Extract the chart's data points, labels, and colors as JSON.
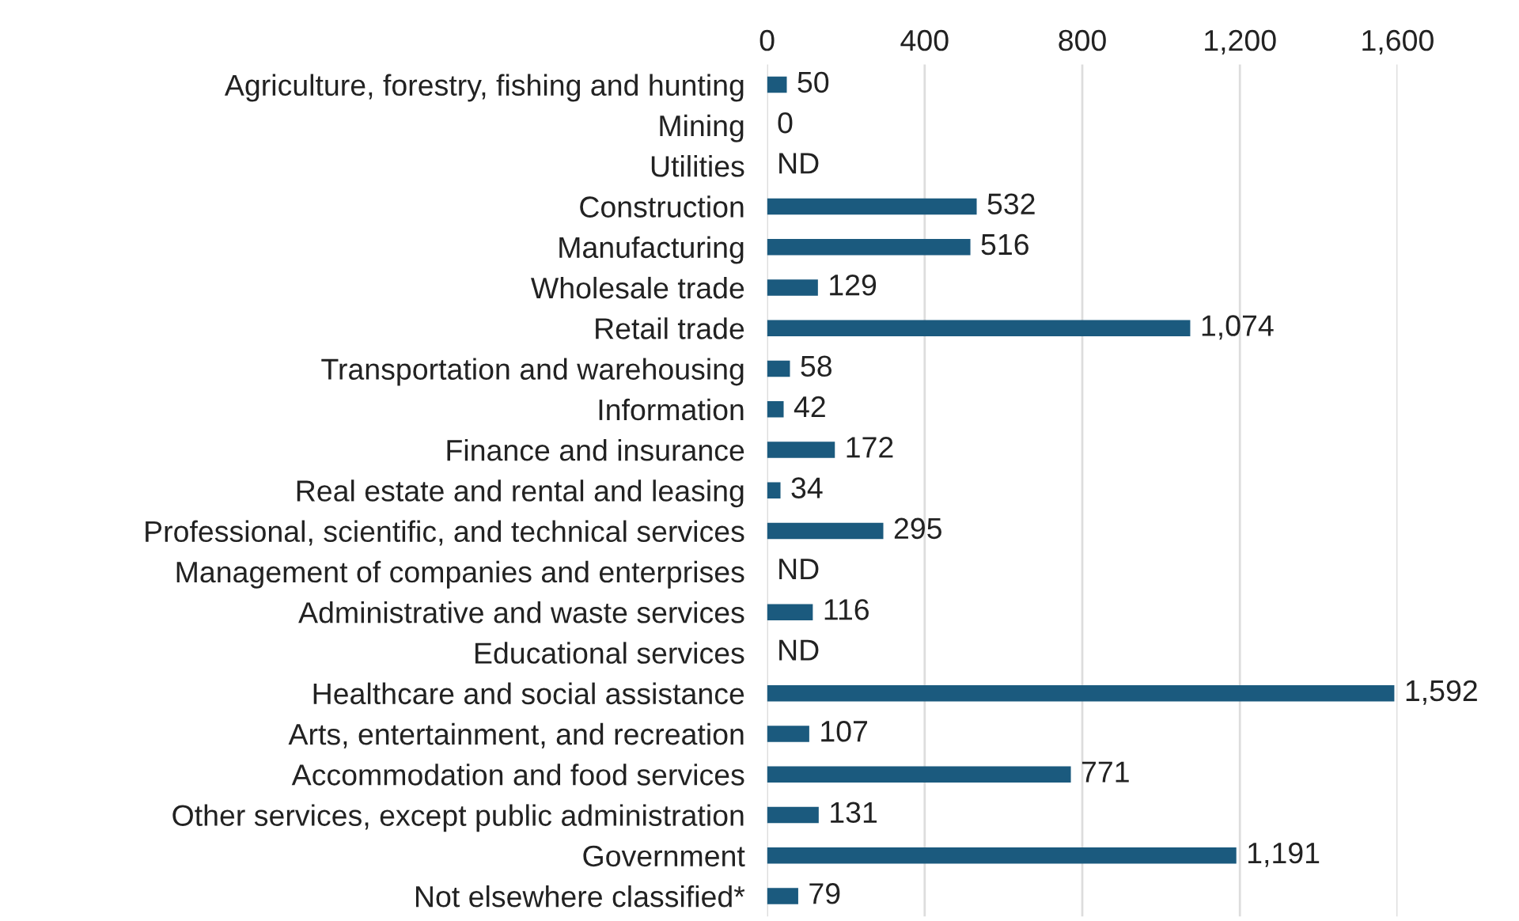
{
  "chart_data": {
    "type": "bar",
    "orientation": "horizontal",
    "categories": [
      "Agriculture, forestry, fishing and hunting",
      "Mining",
      "Utilities",
      "Construction",
      "Manufacturing",
      "Wholesale trade",
      "Retail trade",
      "Transportation and warehousing",
      "Information",
      "Finance and insurance",
      "Real estate and rental and leasing",
      "Professional, scientific, and technical services",
      "Management of companies and enterprises",
      "Administrative and waste services",
      "Educational services",
      "Healthcare and social assistance",
      "Arts, entertainment, and recreation",
      "Accommodation and food services",
      "Other services, except public administration",
      "Government",
      "Not elsewhere classified*"
    ],
    "values": [
      50,
      0,
      null,
      532,
      516,
      129,
      1074,
      58,
      42,
      172,
      34,
      295,
      null,
      116,
      null,
      1592,
      107,
      771,
      131,
      1191,
      79
    ],
    "value_labels": [
      "50",
      "0",
      "ND",
      "532",
      "516",
      "129",
      "1,074",
      "58",
      "42",
      "172",
      "34",
      "295",
      "ND",
      "116",
      "ND",
      "1,592",
      "107",
      "771",
      "131",
      "1,191",
      "79"
    ],
    "color": "#1b5a7e",
    "xlim": [
      0,
      1600
    ],
    "xticks": [
      0,
      400,
      800,
      {
        "value": 1200,
        "label": "1,200"
      },
      {
        "value": 1600,
        "label": "1,600"
      }
    ],
    "grid": "x",
    "legend": false
  }
}
